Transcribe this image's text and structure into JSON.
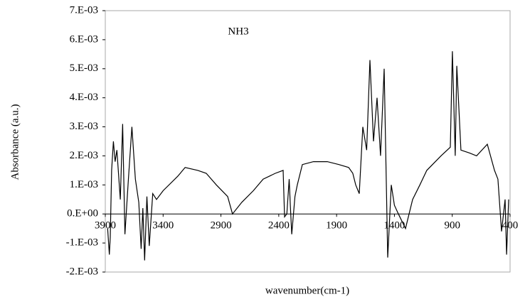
{
  "chart_data": {
    "type": "line",
    "annotation": "NH3",
    "xlabel": "wavenumber(cm-1)",
    "ylabel": "Absorbance (a.u.)",
    "x": [
      3880,
      3865,
      3857,
      3845,
      3830,
      3815,
      3800,
      3770,
      3750,
      3730,
      3700,
      3670,
      3640,
      3610,
      3590,
      3575,
      3560,
      3540,
      3520,
      3490,
      3457,
      3400,
      3273,
      3210,
      3100,
      3027,
      2940,
      2842,
      2800,
      2720,
      2620,
      2535,
      2430,
      2362,
      2350,
      2330,
      2310,
      2300,
      2288,
      2260,
      2240,
      2196,
      2100,
      1980,
      1880,
      1796,
      1760,
      1735,
      1704,
      1673,
      1640,
      1612,
      1581,
      1550,
      1520,
      1489,
      1458,
      1427,
      1400,
      1366,
      1304,
      1243,
      1180,
      1120,
      997,
      917,
      899,
      874,
      861,
      825,
      750,
      690,
      597,
      535,
      505,
      474,
      443,
      430,
      412
    ],
    "values": [
      -0.0005,
      -0.0014,
      -0.0008,
      0.0015,
      0.0025,
      0.0018,
      0.0022,
      0.0005,
      0.0031,
      -0.0007,
      0.0012,
      0.003,
      0.0012,
      0.0004,
      -0.0012,
      0.0002,
      -0.0016,
      0.0006,
      -0.0011,
      0.0007,
      0.0005,
      0.0008,
      0.0013,
      0.0016,
      0.0015,
      0.0014,
      0.001,
      0.0006,
      0.0,
      0.0004,
      0.0008,
      0.0012,
      0.0014,
      0.0015,
      -0.0001,
      0.0,
      0.0012,
      0.0003,
      -0.0007,
      0.0006,
      0.001,
      0.0017,
      0.0018,
      0.0018,
      0.0017,
      0.0016,
      0.0014,
      0.001,
      0.0007,
      0.003,
      0.0022,
      0.0053,
      0.0025,
      0.004,
      0.002,
      0.005,
      -0.0015,
      0.001,
      0.0003,
      0.0,
      -0.0005,
      0.0005,
      0.001,
      0.0015,
      0.002,
      0.0023,
      0.0056,
      0.002,
      0.0051,
      0.0022,
      0.0021,
      0.002,
      0.0024,
      0.0015,
      0.0012,
      -0.0006,
      0.0005,
      -0.0014,
      0.0005
    ],
    "color": "#000000",
    "xlim": [
      3900,
      400
    ],
    "xticks": [
      3900,
      3400,
      2900,
      2400,
      1900,
      1400,
      900,
      400
    ],
    "ylim": [
      -0.002,
      0.007
    ],
    "yticks": [
      {
        "value": -0.002,
        "label": "-2.E-03"
      },
      {
        "value": -0.001,
        "label": "-1.E-03"
      },
      {
        "value": 0,
        "label": "0.E+00"
      },
      {
        "value": 0.001,
        "label": "1.E-03"
      },
      {
        "value": 0.002,
        "label": "2.E-03"
      },
      {
        "value": 0.003,
        "label": "3.E-03"
      },
      {
        "value": 0.004,
        "label": "4.E-03"
      },
      {
        "value": 0.005,
        "label": "5.E-03"
      },
      {
        "value": 0.006,
        "label": "6.E-03"
      },
      {
        "value": 0.007,
        "label": "7.E-03"
      }
    ]
  }
}
